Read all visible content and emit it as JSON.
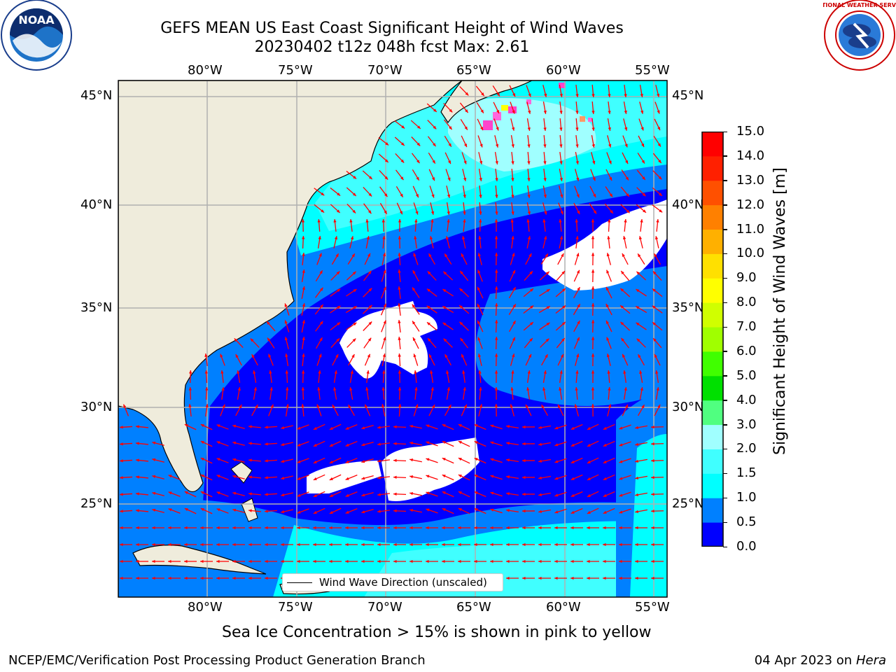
{
  "header": {
    "title_line1": "GEFS MEAN US East Coast Significant Height of Wind Waves",
    "title_line2": "20230402 t12z 048h fcst   Max: 2.61"
  },
  "logos": {
    "left": {
      "name": "noaa-logo",
      "text": "NOAA"
    },
    "right": {
      "name": "nws-logo",
      "text": "NATIONAL WEATHER SERVICE"
    }
  },
  "map": {
    "lon_labels": [
      "80°W",
      "75°W",
      "70°W",
      "65°W",
      "60°W",
      "55°W"
    ],
    "lat_labels": [
      "45°N",
      "40°N",
      "35°N",
      "30°N",
      "25°N"
    ],
    "legend_label": "Wind Wave Direction (unscaled)",
    "arrow_color": "#ff0000",
    "land_color": "#efecdc",
    "clear_color": "#ffffff"
  },
  "colorbar": {
    "label": "Significant Height of Wind Waves [m]",
    "ticks": [
      "15.0",
      "14.0",
      "13.0",
      "12.0",
      "11.0",
      "10.0",
      "9.0",
      "8.0",
      "7.0",
      "6.0",
      "5.0",
      "4.0",
      "3.0",
      "2.0",
      "1.5",
      "1.0",
      "0.5",
      "0.0"
    ],
    "colors": [
      "#0000ff",
      "#0080ff",
      "#00ffff",
      "#40ffff",
      "#a0ffff",
      "#50ff80",
      "#00e000",
      "#40ff00",
      "#a0ff00",
      "#d0ff00",
      "#ffff00",
      "#ffe000",
      "#ffb000",
      "#ff8000",
      "#ff5000",
      "#ff2000",
      "#ff0000"
    ]
  },
  "caption": "Sea Ice Concentration > 15% is shown in pink to yellow",
  "footer": {
    "left": "NCEP/EMC/Verification Post Processing Product Generation Branch",
    "right_date": "04 Apr 2023 on ",
    "right_machine": "Hera"
  }
}
